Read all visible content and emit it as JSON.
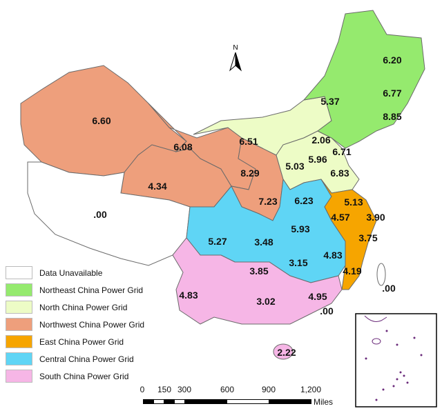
{
  "north_arrow": {
    "label": "N"
  },
  "legend": [
    {
      "label": "Data Unavailable",
      "color": "#ffffff"
    },
    {
      "label": "Northeast China Power Grid",
      "color": "#95ea6e"
    },
    {
      "label": "North China Power Grid",
      "color": "#edfcc6"
    },
    {
      "label": "Northwest China Power Grid",
      "color": "#ee9f7c"
    },
    {
      "label": "East China Power Grid",
      "color": "#f6a500"
    },
    {
      "label": "Central China Power Grid",
      "color": "#5fd5f5"
    },
    {
      "label": "South China Power Grid",
      "color": "#f6b6e6"
    }
  ],
  "values": {
    "xinjiang": "6.60",
    "gansu": "6.08",
    "qinghai": "4.34",
    "ningxia": "8.29",
    "shaanxi": "7.23",
    "tibet": ".00",
    "inner_mongolia": "6.51",
    "beijing": "2.06",
    "tianjin": "6.71",
    "hebei": "5.96",
    "shanxi": "5.03",
    "shandong": "6.83",
    "heilongjiang": "6.20",
    "jilin": "6.77",
    "inner_mongolia_east": "5.37",
    "liaoning": "8.85",
    "henan": "6.23",
    "hubei": "5.93",
    "chongqing": "3.48",
    "sichuan": "5.27",
    "hunan": "3.15",
    "jiangxi": "4.83",
    "jiangsu": "5.13",
    "anhui": "4.57",
    "shanghai": "3.90",
    "zhejiang": "3.75",
    "fujian": "4.19",
    "yunnan": "4.83",
    "guizhou": "3.85",
    "guangxi": "3.02",
    "guangdong": "4.95",
    "hongkong": ".00",
    "hainan": "2.22",
    "taiwan": ".00"
  },
  "scale_bar": {
    "ticks": [
      "0",
      "150",
      "300",
      "600",
      "900",
      "1,200"
    ],
    "unit": "Miles"
  }
}
